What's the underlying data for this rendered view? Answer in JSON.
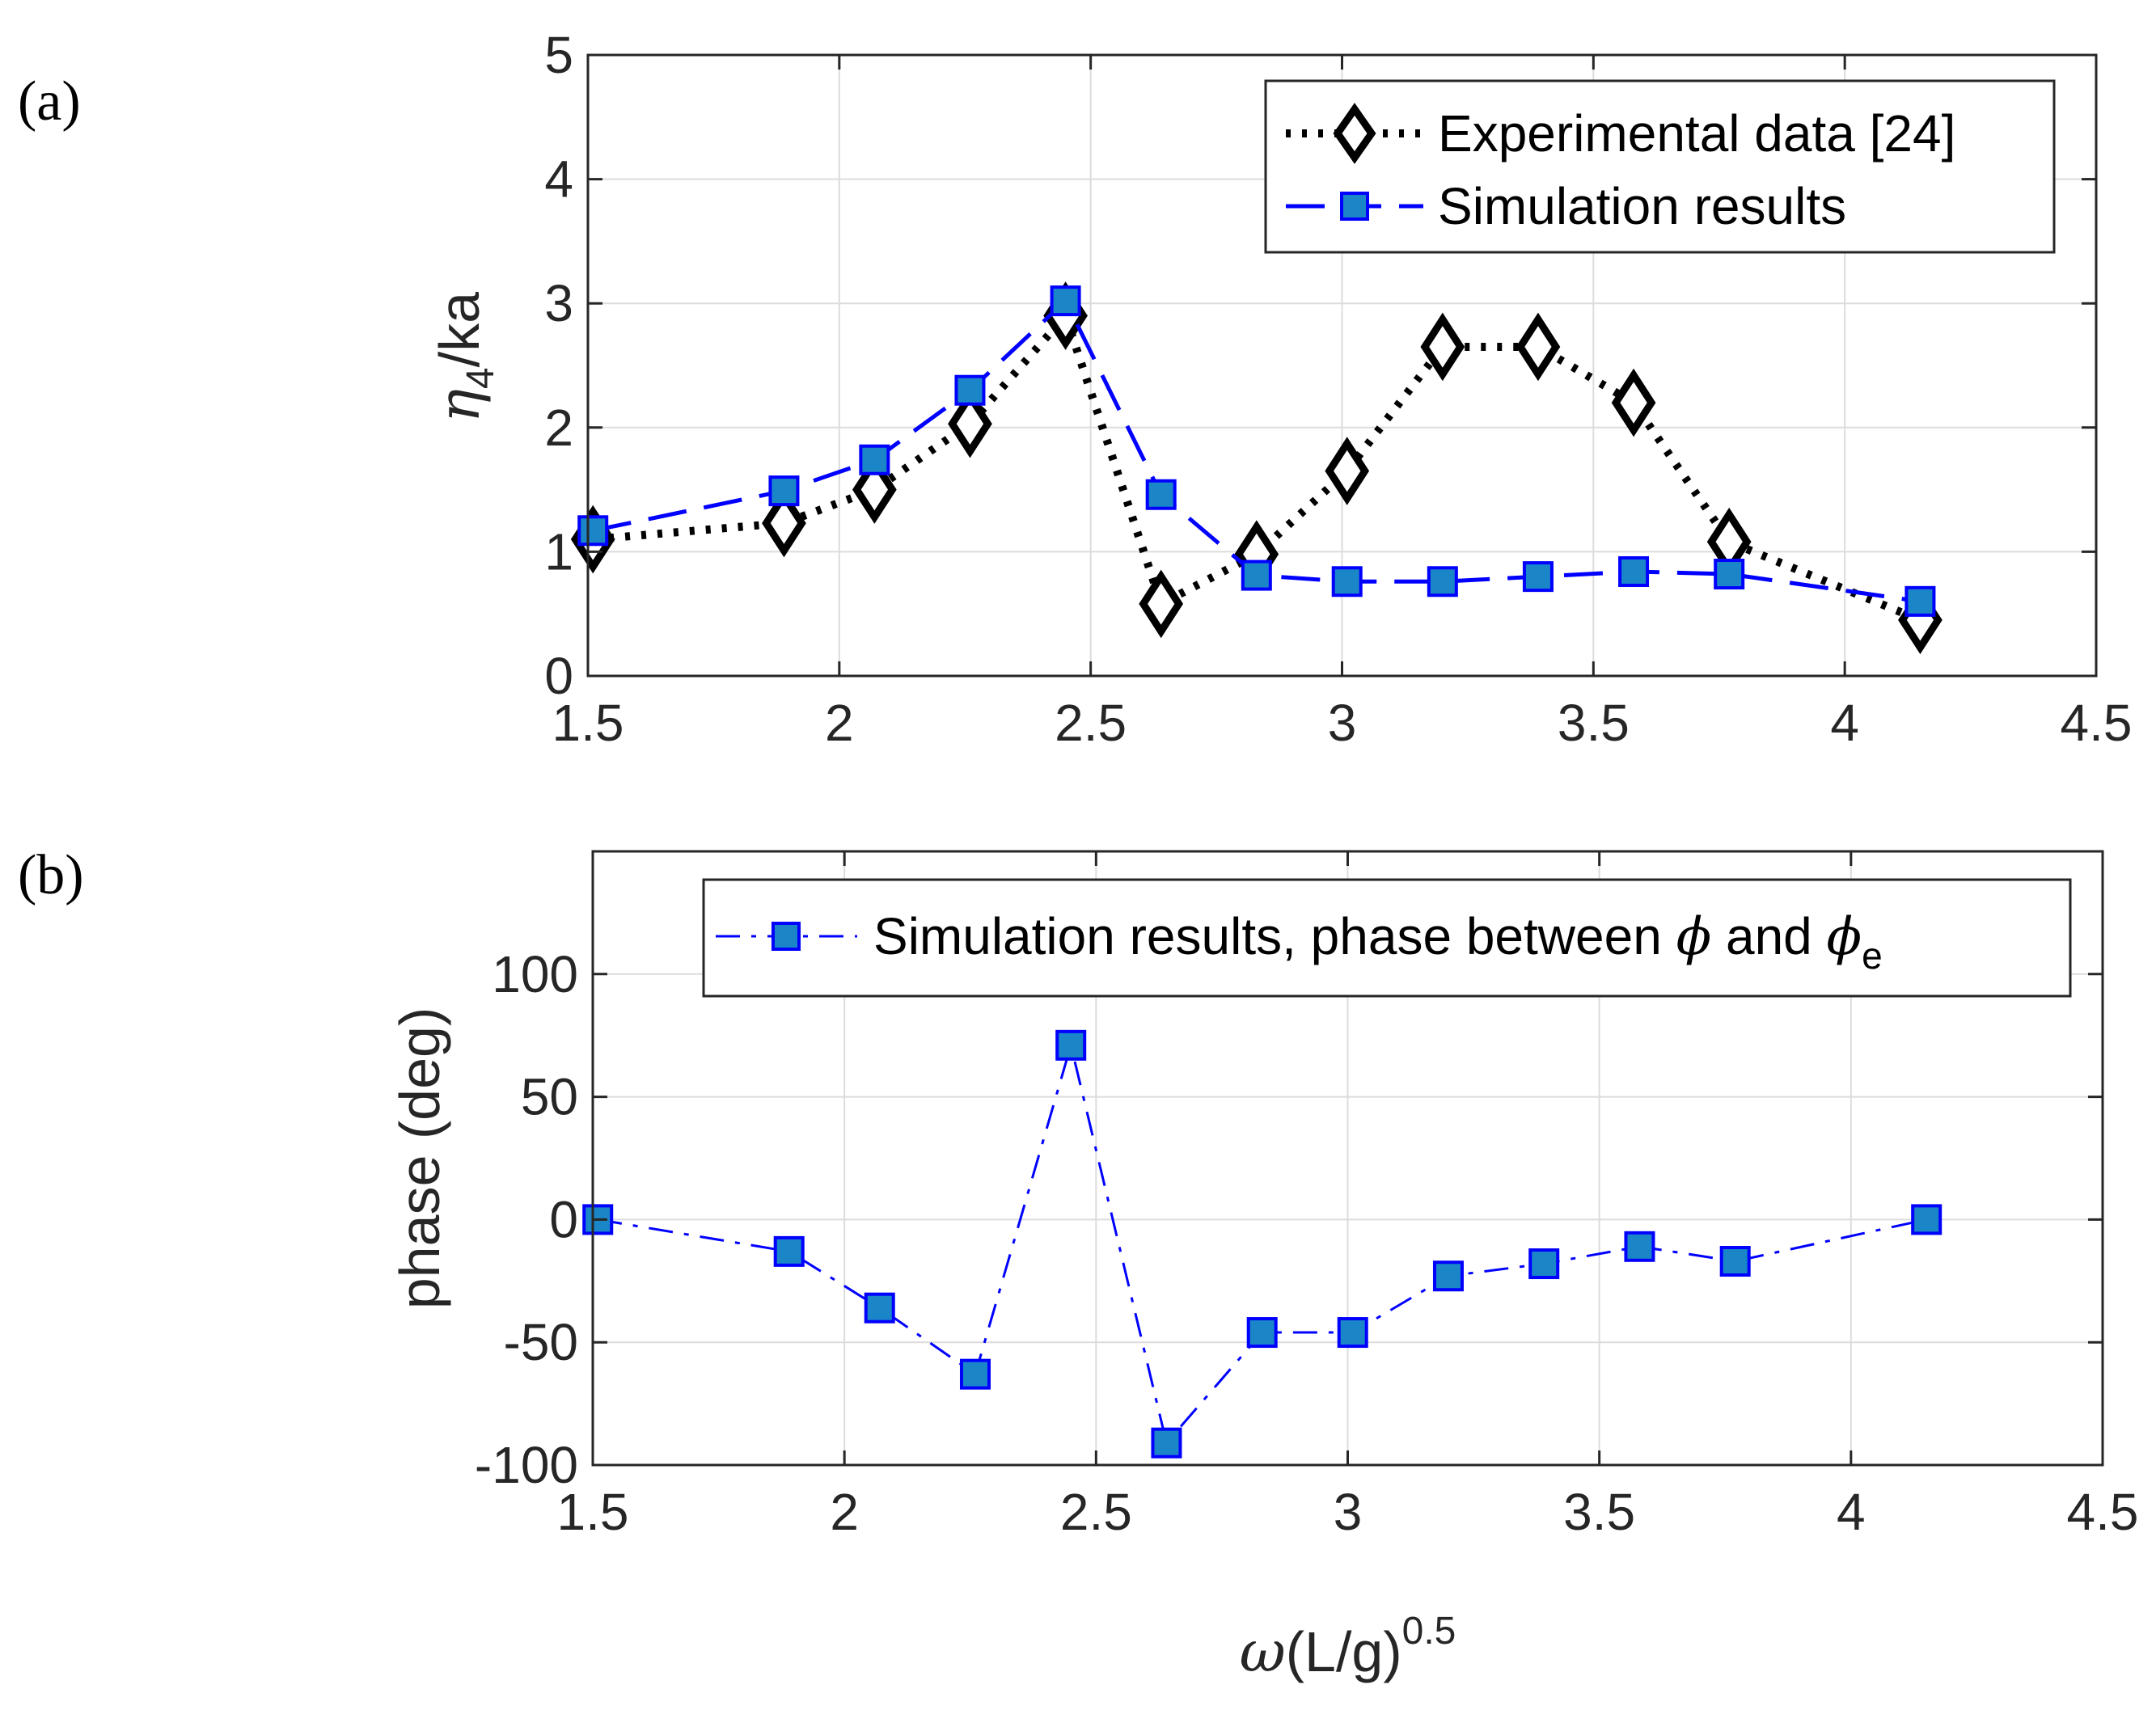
{
  "figure": {
    "panel_labels": [
      "(a)",
      "(b)"
    ]
  },
  "chart_data": [
    {
      "type": "line",
      "panel": "(a)",
      "title": "",
      "xlabel": "",
      "ylabel": {
        "symbol": "η",
        "subscript": "4",
        "suffix": "/ka"
      },
      "xlim": [
        1.5,
        4.5
      ],
      "ylim": [
        0,
        5
      ],
      "xticks": [
        "1.5",
        "2",
        "2.5",
        "3",
        "3.5",
        "4",
        "4.5"
      ],
      "yticks": [
        "0",
        "1",
        "2",
        "3",
        "4",
        "5"
      ],
      "grid": true,
      "legend_position": "top-right",
      "series": [
        {
          "name": "Experimental data [24]",
          "color": "#000000",
          "marker": "diamond",
          "line": "dotted",
          "x": [
            1.51,
            1.89,
            2.07,
            2.26,
            2.45,
            2.64,
            2.83,
            3.01,
            3.2,
            3.39,
            3.58,
            3.77,
            4.15
          ],
          "y": [
            1.1,
            1.23,
            1.5,
            2.03,
            2.9,
            0.58,
            0.98,
            1.65,
            2.65,
            2.65,
            2.2,
            1.08,
            0.45
          ]
        },
        {
          "name": "Simulation results",
          "color": "#0000ff",
          "fill": "#1a86c8",
          "marker": "square",
          "line": "dashed",
          "x": [
            1.51,
            1.89,
            2.07,
            2.26,
            2.45,
            2.64,
            2.83,
            3.01,
            3.2,
            3.39,
            3.58,
            3.77,
            4.15
          ],
          "y": [
            1.17,
            1.49,
            1.74,
            2.3,
            3.02,
            1.46,
            0.81,
            0.76,
            0.76,
            0.8,
            0.84,
            0.82,
            0.6
          ]
        }
      ]
    },
    {
      "type": "line",
      "panel": "(b)",
      "title": "",
      "xlabel": {
        "symbol": "ω",
        "text": "(L/g)",
        "superscript": "0.5"
      },
      "ylabel": "phase (deg)",
      "xlim": [
        1.5,
        4.5
      ],
      "ylim": [
        -100,
        150
      ],
      "xticks": [
        "1.5",
        "2",
        "2.5",
        "3",
        "3.5",
        "4",
        "4.5"
      ],
      "yticks": [
        "-100",
        "-50",
        "0",
        "50",
        "100"
      ],
      "grid": true,
      "legend_position": "top-right",
      "series": [
        {
          "name": {
            "text": "Simulation results, phase between ",
            "phi": "ϕ",
            "and": " and ",
            "sub": "e"
          },
          "color": "#0000ff",
          "fill": "#1a86c8",
          "marker": "square",
          "line": "dash-dot",
          "x": [
            1.51,
            1.89,
            2.07,
            2.26,
            2.45,
            2.64,
            2.83,
            3.01,
            3.2,
            3.39,
            3.58,
            3.77,
            4.15
          ],
          "y": [
            0,
            -13,
            -36,
            -63,
            71,
            -91,
            -46,
            -46,
            -23,
            -18,
            -11,
            -17,
            0
          ]
        }
      ]
    }
  ]
}
